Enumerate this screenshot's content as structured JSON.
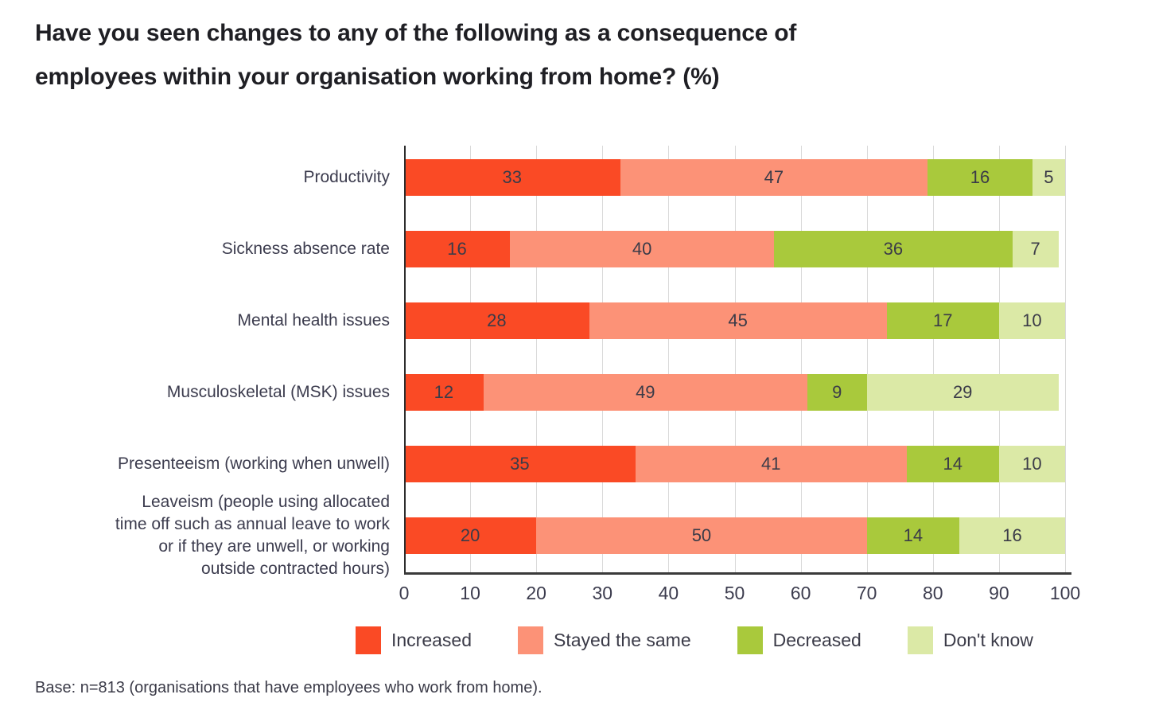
{
  "title": "Have you seen changes to any of the following as a consequence of\nemployees within your organisation working from home? (%)",
  "base_note": "Base: n=813 (organisations that have employees who work from home).",
  "colors": {
    "increased": "#fa4a25",
    "stayed_the_same": "#fc9277",
    "decreased": "#a9c93c",
    "dont_know": "#dbe9a6",
    "gridline": "#d9d9d9",
    "axis": "#3a3a3a",
    "text": "#3b3b48"
  },
  "chart_data": {
    "type": "bar",
    "orientation": "horizontal",
    "stacked": true,
    "grid": true,
    "legend_position": "bottom",
    "xlim": [
      0,
      100
    ],
    "x_ticks": [
      0,
      10,
      20,
      30,
      40,
      50,
      60,
      70,
      80,
      90,
      100
    ],
    "categories": [
      "Productivity",
      "Sickness absence rate",
      "Mental health issues",
      "Musculoskeletal (MSK) issues",
      "Presenteeism (working when unwell)",
      "Leaveism (people using allocated\ntime off such as annual leave to work\nor if they are unwell, or working\noutside contracted hours)"
    ],
    "series": [
      {
        "name": "Increased",
        "color": "#fa4a25",
        "values": [
          33,
          16,
          28,
          12,
          35,
          20
        ]
      },
      {
        "name": "Stayed the same",
        "color": "#fc9277",
        "values": [
          47,
          40,
          45,
          49,
          41,
          50
        ]
      },
      {
        "name": "Decreased",
        "color": "#a9c93c",
        "values": [
          16,
          36,
          17,
          9,
          14,
          14
        ]
      },
      {
        "name": "Don't know",
        "color": "#dbe9a6",
        "values": [
          5,
          7,
          10,
          29,
          10,
          16
        ]
      }
    ]
  }
}
